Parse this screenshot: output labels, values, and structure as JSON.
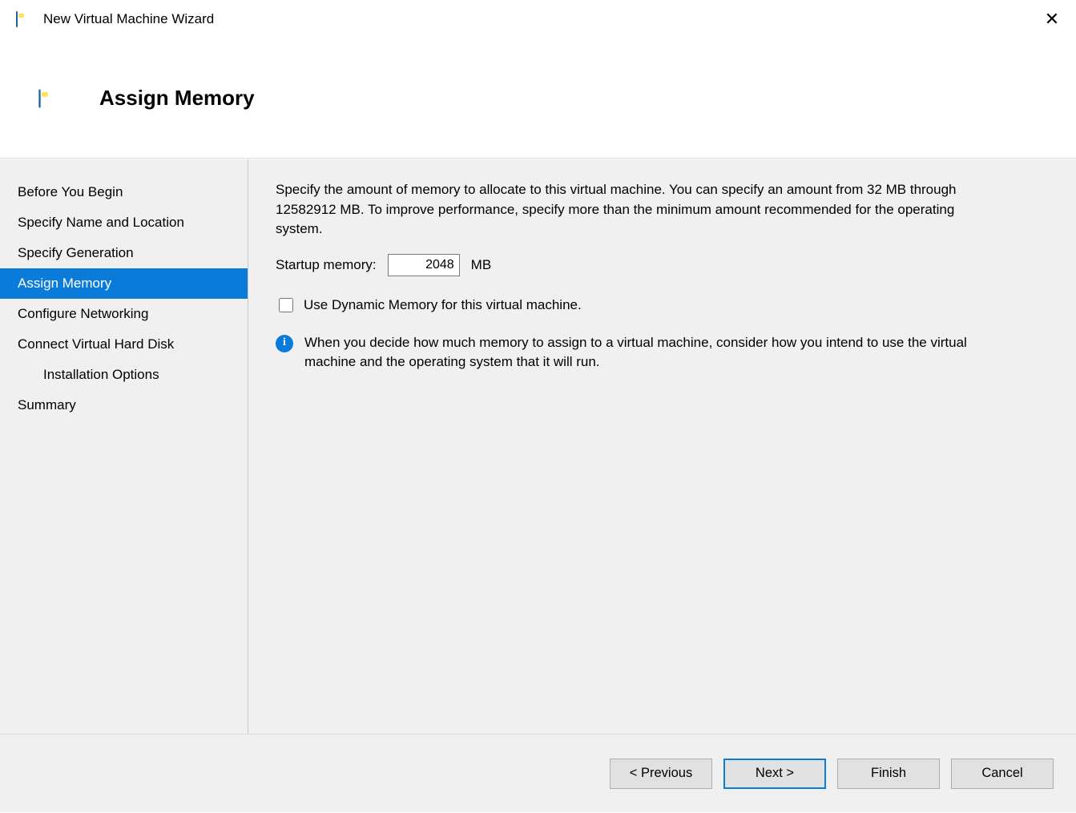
{
  "window": {
    "title": "New Virtual Machine Wizard"
  },
  "header": {
    "title": "Assign Memory"
  },
  "sidebar": {
    "steps": [
      {
        "label": "Before You Begin",
        "active": false,
        "indent": false
      },
      {
        "label": "Specify Name and Location",
        "active": false,
        "indent": false
      },
      {
        "label": "Specify Generation",
        "active": false,
        "indent": false
      },
      {
        "label": "Assign Memory",
        "active": true,
        "indent": false
      },
      {
        "label": "Configure Networking",
        "active": false,
        "indent": false
      },
      {
        "label": "Connect Virtual Hard Disk",
        "active": false,
        "indent": false
      },
      {
        "label": "Installation Options",
        "active": false,
        "indent": true
      },
      {
        "label": "Summary",
        "active": false,
        "indent": false
      }
    ]
  },
  "content": {
    "description": "Specify the amount of memory to allocate to this virtual machine. You can specify an amount from 32 MB through 12582912 MB. To improve performance, specify more than the minimum amount recommended for the operating system.",
    "startup_memory_label": "Startup memory:",
    "startup_memory_value": "2048",
    "startup_memory_unit": "MB",
    "dynamic_memory_label": "Use Dynamic Memory for this virtual machine.",
    "dynamic_memory_checked": false,
    "info_text": "When you decide how much memory to assign to a virtual machine, consider how you intend to use the virtual machine and the operating system that it will run."
  },
  "footer": {
    "previous": "< Previous",
    "next": "Next >",
    "finish": "Finish",
    "cancel": "Cancel"
  },
  "colors": {
    "accent": "#0a7bd8",
    "panel_bg": "#f0f0f0",
    "border": "#dcdcdc",
    "button_bg": "#e1e1e1",
    "button_border": "#adadad"
  }
}
